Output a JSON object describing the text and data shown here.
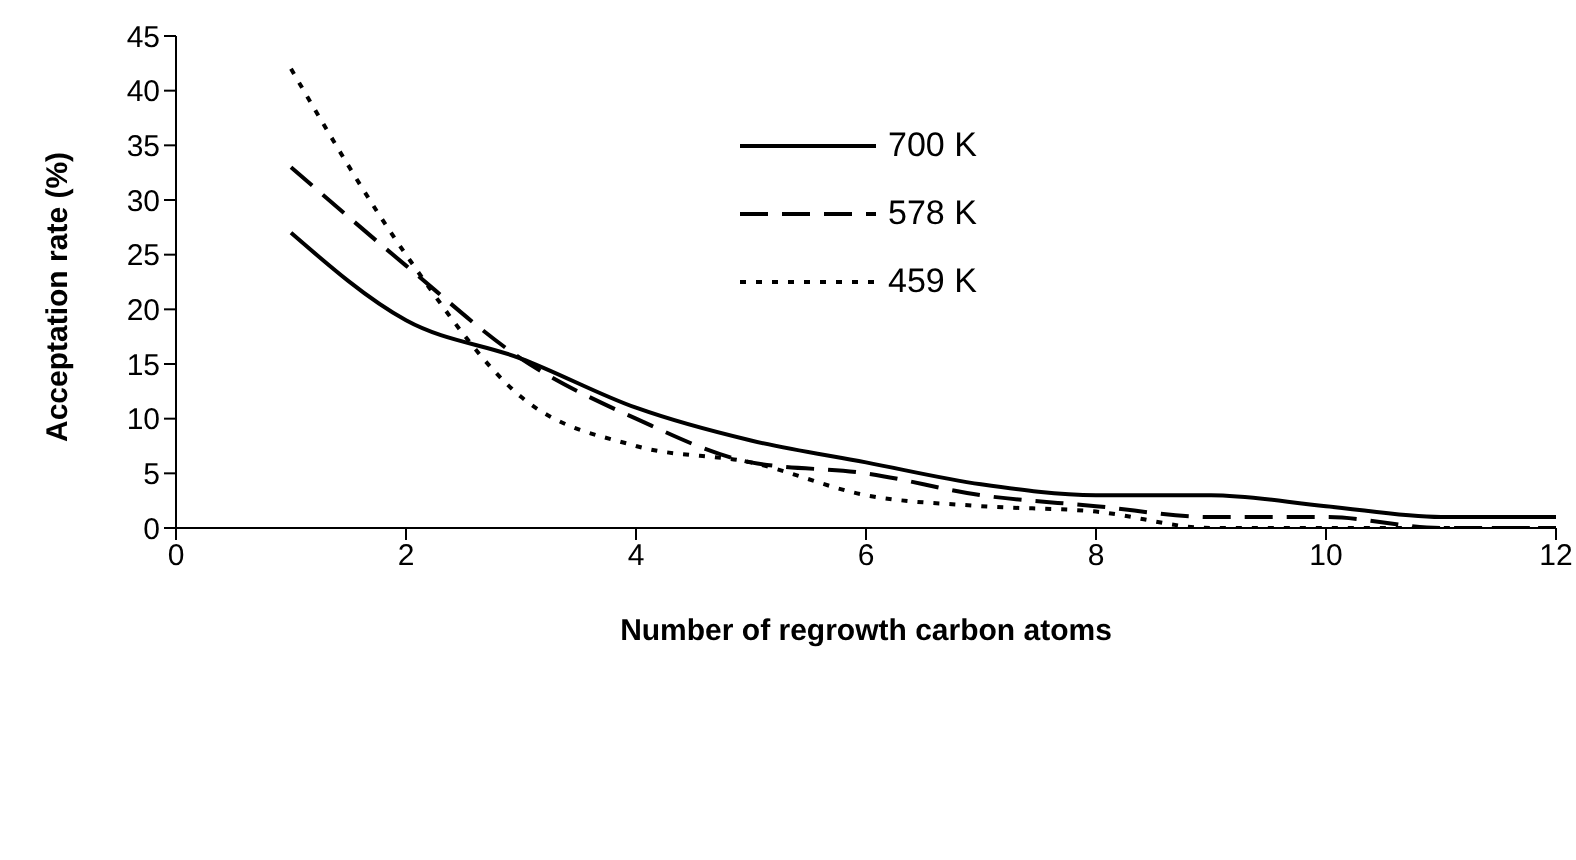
{
  "chart_data": {
    "type": "line",
    "xlabel": "Number of regrowth carbon atoms",
    "ylabel": "Acceptation rate (%)",
    "x": [
      1,
      2,
      3,
      4,
      5,
      6,
      7,
      8,
      9,
      10,
      11,
      12
    ],
    "series": [
      {
        "name": "700 K",
        "color": "#000000",
        "line_style": "solid",
        "values": [
          27,
          19,
          15.5,
          11,
          8,
          6,
          4,
          3,
          3,
          2,
          1,
          1
        ]
      },
      {
        "name": "578 K",
        "color": "#000000",
        "line_style": "dashed",
        "values": [
          33,
          24,
          15.5,
          10,
          6,
          5,
          3,
          2,
          1,
          1,
          0,
          0
        ]
      },
      {
        "name": "459 K",
        "color": "#000000",
        "line_style": "dotted",
        "values": [
          42,
          25,
          12,
          7.5,
          6,
          3,
          2,
          1.5,
          0,
          0,
          0,
          0
        ]
      }
    ],
    "xlim": [
      0,
      12
    ],
    "xticks": [
      0,
      2,
      4,
      6,
      8,
      10,
      12
    ],
    "ylim": [
      0,
      45
    ],
    "yticks": [
      0,
      5,
      10,
      15,
      20,
      25,
      30,
      35,
      40,
      45
    ],
    "legend": "top",
    "marker": "none"
  }
}
